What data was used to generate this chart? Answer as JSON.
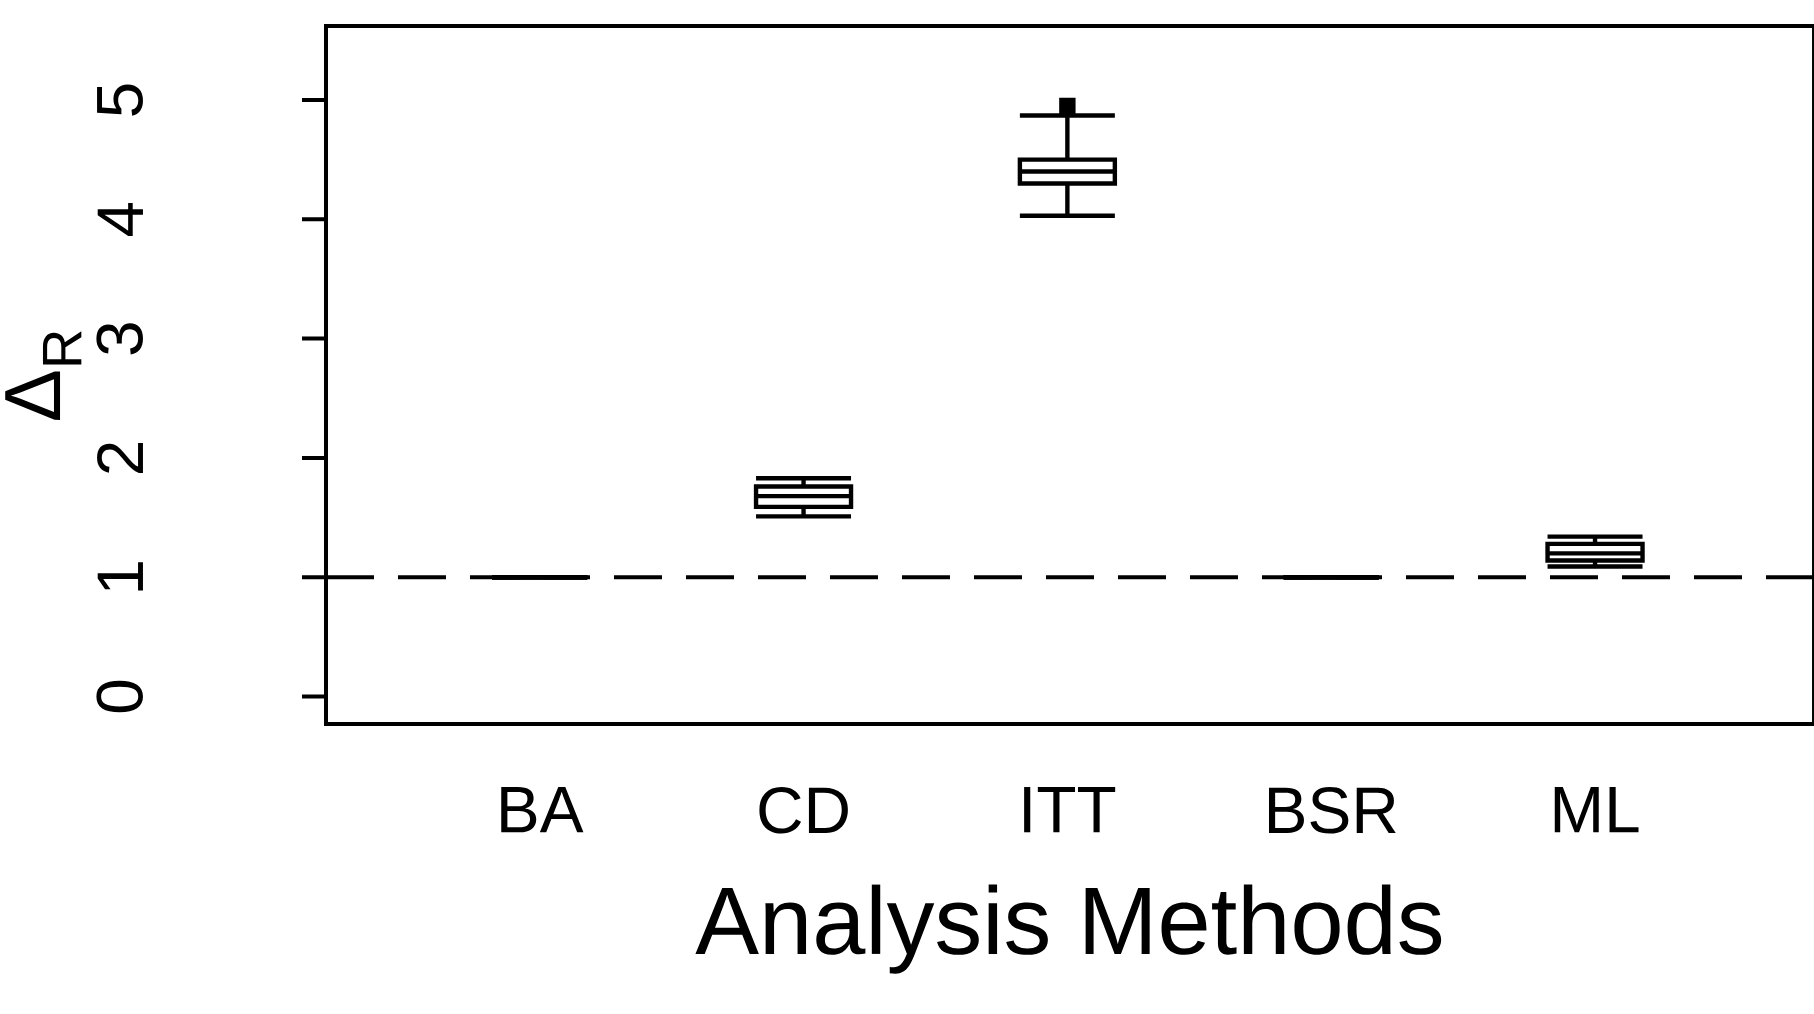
{
  "chart_data": {
    "type": "box",
    "xlabel": "Analysis Methods",
    "ylabel": "Δ$_{R}$",
    "categories": [
      "BA",
      "CD",
      "ITT",
      "BSR",
      "ML"
    ],
    "boxes": [
      {
        "low": 1,
        "q1": 1,
        "median": 1,
        "q3": 1,
        "high": 1
      },
      {
        "low": 1.51,
        "q1": 1.59,
        "median": 1.68,
        "q3": 1.76,
        "high": 1.83
      },
      {
        "low": 4.03,
        "q1": 4.3,
        "median": 4.4,
        "q3": 4.5,
        "high": 4.87,
        "outliers": [
          4.95
        ]
      },
      {
        "low": 1,
        "q1": 1,
        "median": 1,
        "q3": 1,
        "high": 1
      },
      {
        "low": 1.09,
        "q1": 1.14,
        "median": 1.2,
        "q3": 1.28,
        "high": 1.34
      }
    ],
    "ylim": [
      -0.23,
      5.62
    ],
    "yticks": [
      0,
      1,
      2,
      3,
      4,
      5
    ],
    "ref_lines": [
      {
        "axis": "y",
        "value": 1,
        "line_style": "dashed"
      }
    ]
  }
}
